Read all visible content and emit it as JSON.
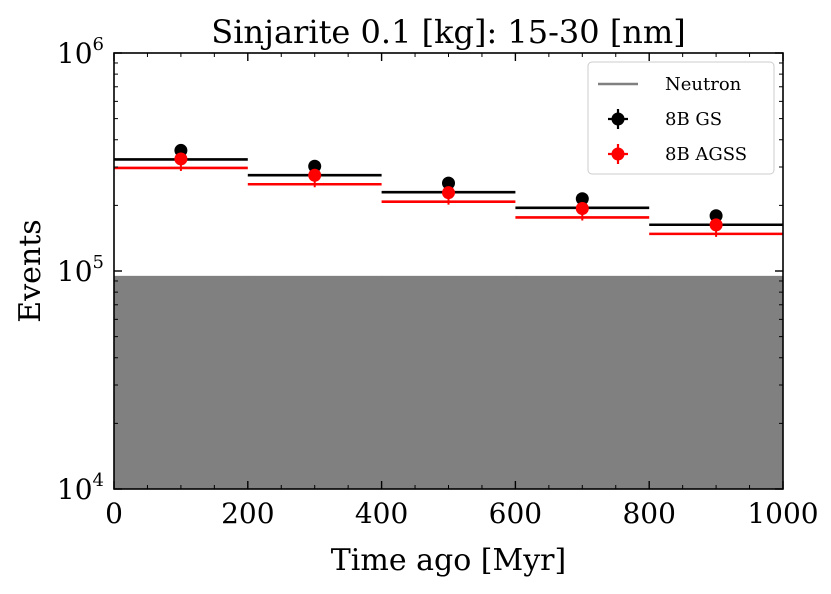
{
  "chart_data": {
    "type": "step",
    "title": "Sinjarite 0.1 [kg]: 15-30 [nm]",
    "xlabel": "Time ago [Myr]",
    "ylabel": "Events",
    "xlim": [
      0,
      1000
    ],
    "ylim": [
      10000,
      1000000
    ],
    "yscale": "log",
    "x_ticks": [
      0,
      200,
      400,
      600,
      800,
      1000
    ],
    "x_tick_labels": [
      "0",
      "200",
      "400",
      "600",
      "800",
      "1000"
    ],
    "y_ticks": [
      10000,
      100000,
      1000000
    ],
    "y_tick_labels": [
      {
        "base": "10",
        "exp": "4"
      },
      {
        "base": "10",
        "exp": "5"
      },
      {
        "base": "10",
        "exp": "6"
      }
    ],
    "bin_edges": [
      0,
      200,
      400,
      600,
      800,
      1000
    ],
    "bin_centers": [
      100,
      300,
      500,
      700,
      900
    ],
    "series": [
      {
        "name": "Neutron",
        "kind": "filled-band",
        "color": "#808080",
        "values": [
          95000,
          95000,
          95000,
          95000,
          95000
        ]
      },
      {
        "name": "8B GS",
        "kind": "step+errorbar",
        "color": "#000000",
        "values": [
          325000,
          275000,
          230000,
          195000,
          163000
        ]
      },
      {
        "name": "8B AGSS",
        "kind": "step+errorbar",
        "color": "#ff0000",
        "values": [
          297000,
          250000,
          208000,
          176000,
          148000
        ]
      }
    ],
    "legend": {
      "position": "top-right",
      "entries": [
        {
          "label": "Neutron",
          "color": "#808080",
          "marker": "line"
        },
        {
          "label": "8B GS",
          "color": "#000000",
          "marker": "errorbar"
        },
        {
          "label": "8B AGSS",
          "color": "#ff0000",
          "marker": "errorbar"
        }
      ]
    }
  }
}
